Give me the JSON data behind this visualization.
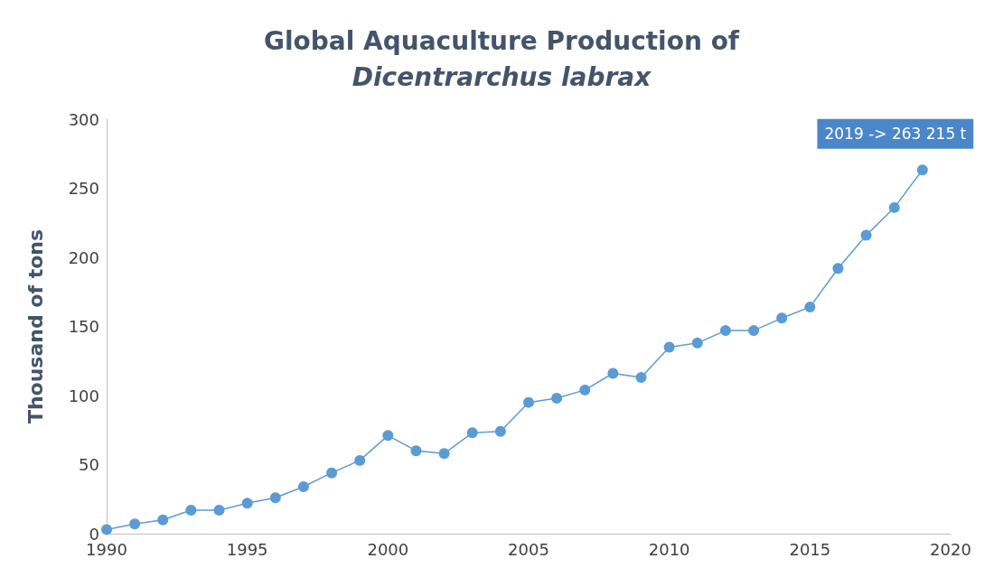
{
  "chart_data": {
    "type": "line",
    "title": "Global Aquaculture Production of\nDicentrarchus labrax",
    "ylabel": "Thousand of tons",
    "x": [
      1990,
      1991,
      1992,
      1993,
      1994,
      1995,
      1996,
      1997,
      1998,
      1999,
      2000,
      2001,
      2002,
      2003,
      2004,
      2005,
      2006,
      2007,
      2008,
      2009,
      2010,
      2011,
      2012,
      2013,
      2014,
      2015,
      2016,
      2017,
      2018,
      2019
    ],
    "series": [
      {
        "color": "#5b9bd5",
        "values": [
          3,
          7,
          10,
          17,
          17,
          22,
          26,
          34,
          44,
          53,
          71,
          60,
          58,
          73,
          74,
          95,
          98,
          104,
          116,
          113,
          135,
          138,
          147,
          147,
          156,
          164,
          192,
          216,
          236,
          263.215
        ]
      }
    ],
    "xlim": [
      1990,
      2020
    ],
    "xticks": [
      1990,
      1995,
      2000,
      2005,
      2010,
      2015,
      2020
    ],
    "ylim": [
      0,
      300
    ],
    "yticks": [
      0,
      50,
      100,
      150,
      200,
      250,
      300
    ],
    "annotations": [
      {
        "text": "2019 -> 263 215 t",
        "x": 2019,
        "y": 263.215
      }
    ],
    "grid": false,
    "marker": "circle",
    "line_style": "solid"
  }
}
